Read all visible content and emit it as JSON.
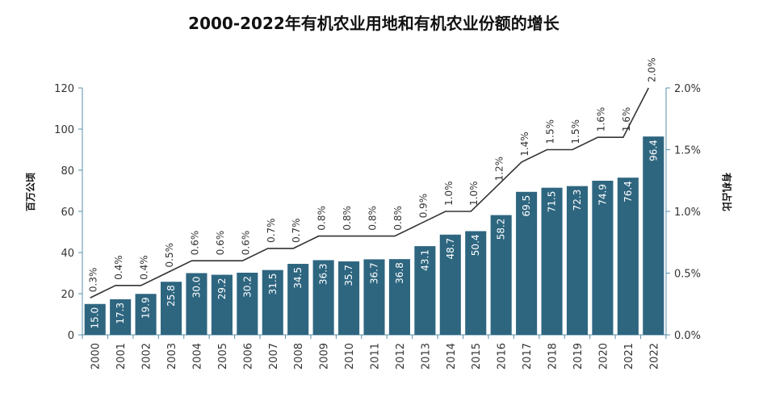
{
  "chart_data": {
    "type": "bar+line",
    "title": "2000-2022年有机农业用地和有机农业份额的增长",
    "ylabel_left": "百万公顷",
    "ylabel_right": "有机占比",
    "ylim_left": [
      0,
      120
    ],
    "yticks_left": [
      "0",
      "20",
      "40",
      "60",
      "80",
      "100",
      "120"
    ],
    "ylim_right": [
      0,
      2.0
    ],
    "yticks_right": [
      "0.0%",
      "0.5%",
      "1.0%",
      "1.5%",
      "2.0%"
    ],
    "grid": false,
    "categories": [
      "2000",
      "2001",
      "2002",
      "2003",
      "2004",
      "2005",
      "2006",
      "2007",
      "2008",
      "2009",
      "2010",
      "2011",
      "2012",
      "2013",
      "2014",
      "2015",
      "2016",
      "2017",
      "2018",
      "2019",
      "2020",
      "2021",
      "2022"
    ],
    "series": [
      {
        "type": "bar",
        "axis": "left",
        "color": "#2e6680",
        "values": [
          15.0,
          17.3,
          19.9,
          25.8,
          30.0,
          29.2,
          30.2,
          31.5,
          34.5,
          36.3,
          35.7,
          36.7,
          36.8,
          43.1,
          48.7,
          50.4,
          58.2,
          69.5,
          71.5,
          72.3,
          74.9,
          76.4,
          96.4
        ],
        "labels": [
          "15.0",
          "17.3",
          "19.9",
          "25.8",
          "30.0",
          "29.2",
          "30.2",
          "31.5",
          "34.5",
          "36.3",
          "35.7",
          "36.7",
          "36.8",
          "43.1",
          "48.7",
          "50.4",
          "58.2",
          "69.5",
          "71.5",
          "72.3",
          "74.9",
          "76.4",
          "96.4"
        ]
      },
      {
        "type": "line",
        "axis": "right",
        "color": "#333333",
        "values": [
          0.3,
          0.4,
          0.4,
          0.5,
          0.6,
          0.6,
          0.6,
          0.7,
          0.7,
          0.8,
          0.8,
          0.8,
          0.8,
          0.9,
          1.0,
          1.0,
          1.2,
          1.4,
          1.5,
          1.5,
          1.6,
          1.6,
          2.0
        ],
        "labels": [
          "0.3%",
          "0.4%",
          "0.4%",
          "0.5%",
          "0.6%",
          "0.6%",
          "0.6%",
          "0.7%",
          "0.7%",
          "0.8%",
          "0.8%",
          "0.8%",
          "0.8%",
          "0.9%",
          "1.0%",
          "1.0%",
          "1.2%",
          "1.4%",
          "1.5%",
          "1.5%",
          "1.6%",
          "1.6%",
          "2.0%"
        ]
      }
    ],
    "axis_color": "#5a8fa8"
  }
}
